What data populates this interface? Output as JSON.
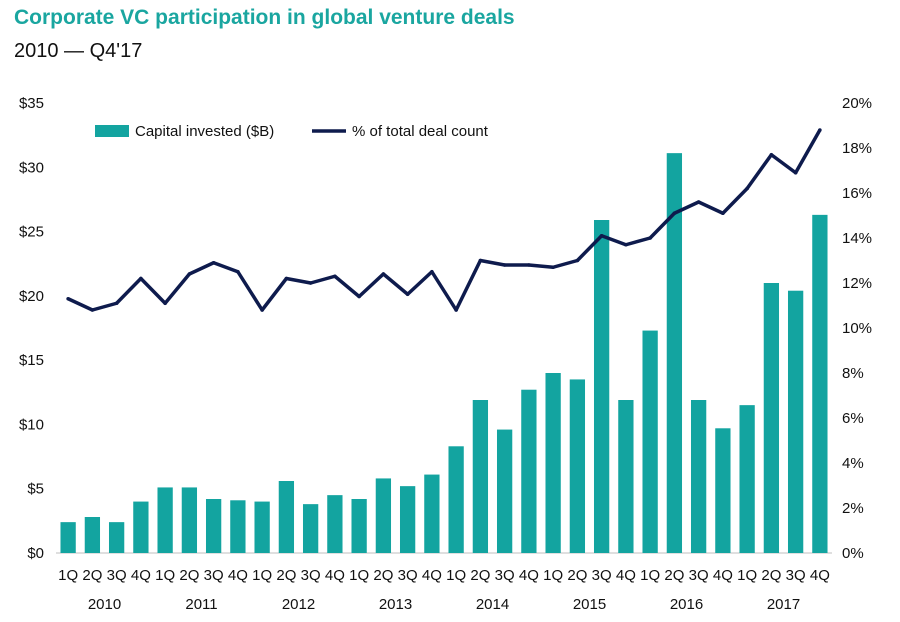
{
  "chart_data": {
    "type": "bar+line",
    "title": "Corporate VC participation in global venture deals",
    "subtitle": "2010 — Q4'17",
    "quarters": [
      "1Q",
      "2Q",
      "3Q",
      "4Q",
      "1Q",
      "2Q",
      "3Q",
      "4Q",
      "1Q",
      "2Q",
      "3Q",
      "4Q",
      "1Q",
      "2Q",
      "3Q",
      "4Q",
      "1Q",
      "2Q",
      "3Q",
      "4Q",
      "1Q",
      "2Q",
      "3Q",
      "4Q",
      "1Q",
      "2Q",
      "3Q",
      "4Q",
      "1Q",
      "2Q",
      "3Q",
      "4Q"
    ],
    "years": [
      "2010",
      "2011",
      "2012",
      "2013",
      "2014",
      "2015",
      "2016",
      "2017"
    ],
    "series": [
      {
        "name": "Capital invested ($B)",
        "type": "bar",
        "axis": "left",
        "color": "#13a4a0",
        "values": [
          2.4,
          2.8,
          2.4,
          4.0,
          5.1,
          5.1,
          4.2,
          4.1,
          4.0,
          5.6,
          3.8,
          4.5,
          4.2,
          5.8,
          5.2,
          6.1,
          8.3,
          11.9,
          9.6,
          12.7,
          14.0,
          13.5,
          25.9,
          11.9,
          17.3,
          31.1,
          11.9,
          9.7,
          11.5,
          21.0,
          20.4,
          26.3
        ]
      },
      {
        "name": "% of total deal count",
        "type": "line",
        "axis": "right",
        "color": "#0e1b4d",
        "values": [
          11.3,
          10.8,
          11.1,
          12.2,
          11.1,
          12.4,
          12.9,
          12.5,
          10.8,
          12.2,
          12.0,
          12.3,
          11.4,
          12.4,
          11.5,
          12.5,
          10.8,
          13.0,
          12.8,
          12.8,
          12.7,
          13.0,
          14.1,
          13.7,
          14.0,
          15.1,
          15.6,
          15.1,
          16.2,
          17.7,
          16.9,
          18.8
        ]
      }
    ],
    "y_left": {
      "min": 0,
      "max": 35,
      "step": 5,
      "ticks": [
        "$0",
        "$5",
        "$10",
        "$15",
        "$20",
        "$25",
        "$30",
        "$35"
      ]
    },
    "y_right": {
      "min": 0,
      "max": 20,
      "step": 2,
      "ticks": [
        "0%",
        "2%",
        "4%",
        "6%",
        "8%",
        "10%",
        "12%",
        "14%",
        "16%",
        "18%",
        "20%"
      ]
    },
    "legend_position": "top-left"
  }
}
